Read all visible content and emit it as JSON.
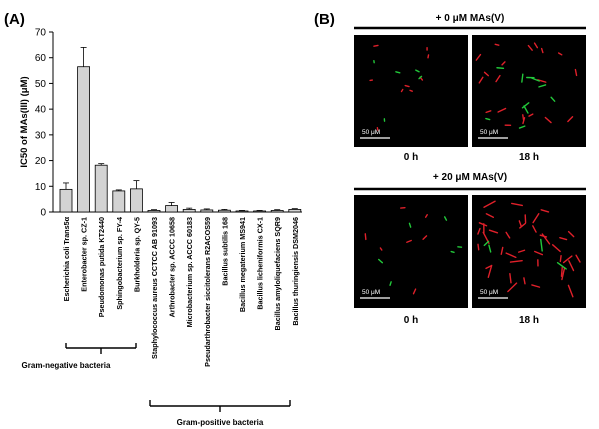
{
  "panel_a": {
    "label": "(A)"
  },
  "panel_b": {
    "label": "(B)",
    "groups": [
      {
        "title": "+ 0 μM MAs(V)",
        "times": [
          "0 h",
          "18 h"
        ]
      },
      {
        "title": "+ 20 μM MAs(V)",
        "times": [
          "0 h",
          "18 h"
        ]
      }
    ],
    "scale_bar": "50 μM",
    "colors": {
      "background": "#000000",
      "red_cells": "#e0202a",
      "green_cells": "#22c83a",
      "scale_bar": "#ffffff"
    }
  },
  "groups": {
    "gram_negative": "Gram-negative bacteria",
    "gram_positive": "Gram-positive bacteria"
  },
  "chart_data": {
    "type": "bar",
    "ylabel": "IC50 of MAs(III) (μM)",
    "xlabel": "",
    "ylim": [
      0,
      70
    ],
    "yticks": [
      0,
      10,
      20,
      30,
      40,
      50,
      60,
      70
    ],
    "categories": [
      "Escherichia coli Trans5α",
      "Enterobacter sp. CZ-1",
      "Pseudomonas putida KT2440",
      "Sphingobacterium sp. FY-4",
      "Burkholderia sp. QY-5",
      "Staphylococcus aureus CCTCC AB 91093",
      "Arthrobacter sp. ACCC 10658",
      "Microbacterium sp. ACCC 60183",
      "Pseudarthrobacter siccitolerans R2ACOS59",
      "Bacillus subtilis 168",
      "Bacillus megaterium MS941",
      "Bacillus licheniformis CX-1",
      "Bacillus amyloliquefaciens SQR9",
      "Bacillus thuringiensis DSM2046"
    ],
    "values": [
      8.8,
      56.5,
      18.2,
      8.2,
      9.0,
      0.6,
      2.5,
      1.0,
      0.8,
      0.7,
      0.4,
      0.4,
      0.6,
      1.0
    ],
    "errors": [
      2.5,
      7.5,
      0.6,
      0.4,
      3.2,
      0.3,
      1.2,
      0.5,
      0.4,
      0.3,
      0.2,
      0.2,
      0.3,
      0.3
    ],
    "bar_color": "#d3d3d3",
    "grid": false
  }
}
